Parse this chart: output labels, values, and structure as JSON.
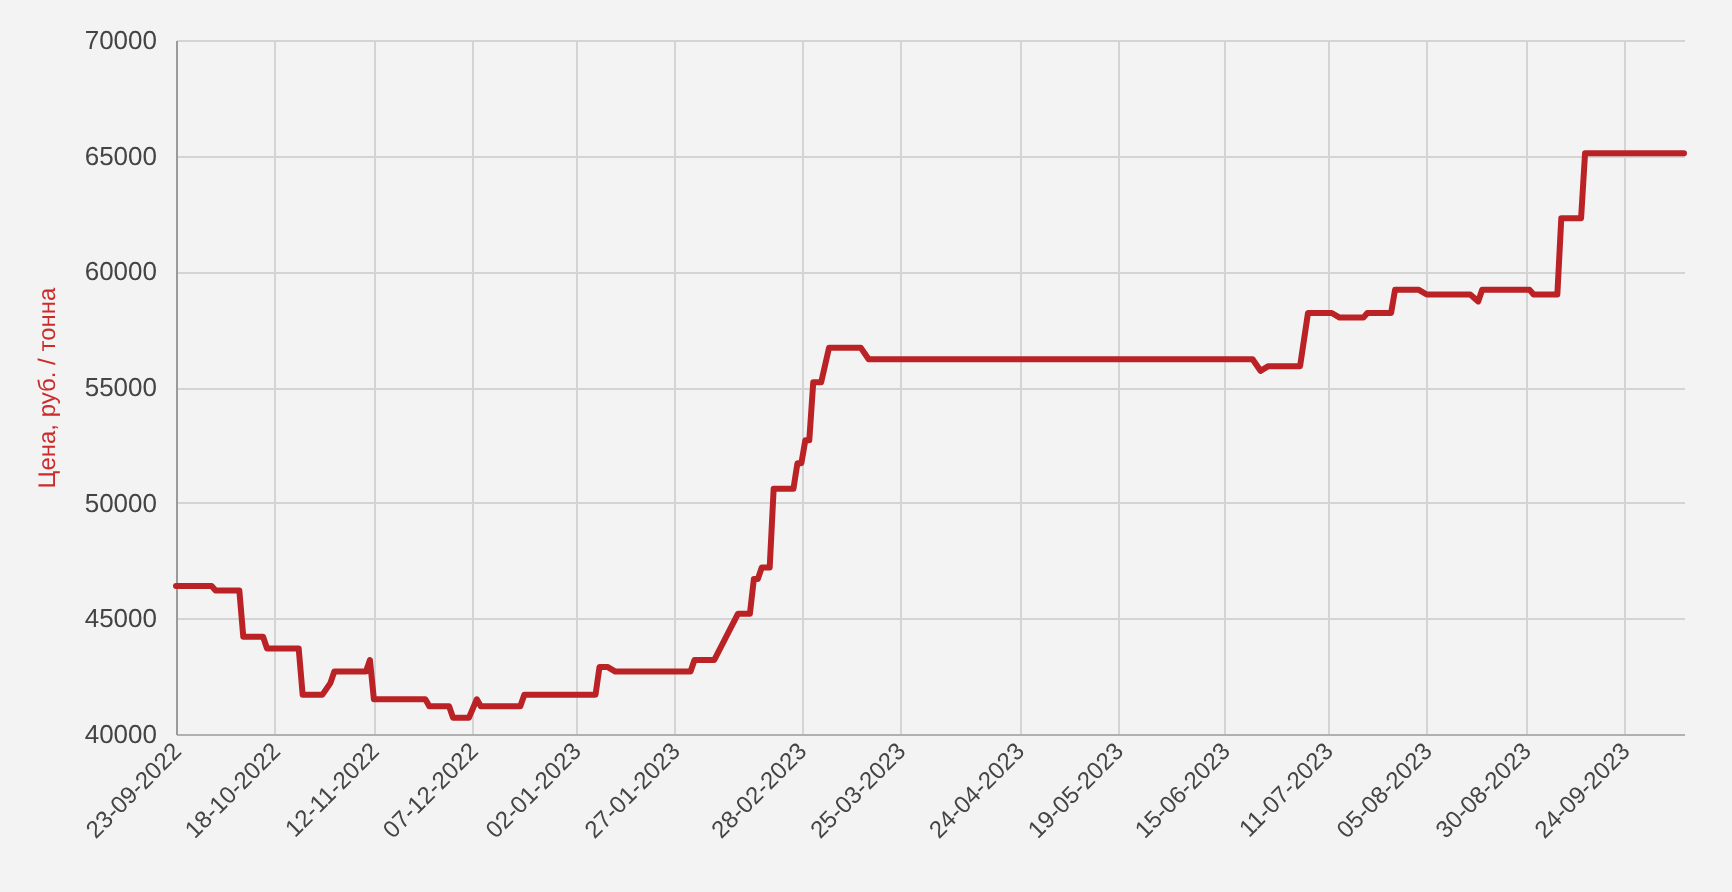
{
  "chart_data": {
    "type": "line",
    "ylabel": "Цена, руб. / тонна",
    "x": [
      "2022-09-23",
      "2022-10-02",
      "2022-10-03",
      "2022-10-09",
      "2022-10-10",
      "2022-10-15",
      "2022-10-16",
      "2022-10-24",
      "2022-10-25",
      "2022-10-30",
      "2022-11-01",
      "2022-11-02",
      "2022-11-10",
      "2022-11-11",
      "2022-11-12",
      "2022-11-25",
      "2022-11-26",
      "2022-12-01",
      "2022-12-02",
      "2022-12-06",
      "2022-12-08",
      "2022-12-09",
      "2022-12-19",
      "2022-12-20",
      "2023-01-07",
      "2023-01-08",
      "2023-01-10",
      "2023-01-12",
      "2023-01-31",
      "2023-02-01",
      "2023-02-06",
      "2023-02-12",
      "2023-02-15",
      "2023-02-16",
      "2023-02-17",
      "2023-02-18",
      "2023-02-20",
      "2023-02-21",
      "2023-02-26",
      "2023-02-27",
      "2023-02-28",
      "2023-03-01",
      "2023-03-02",
      "2023-03-03",
      "2023-03-05",
      "2023-03-07",
      "2023-03-15",
      "2023-03-17",
      "2023-06-22",
      "2023-06-24",
      "2023-06-26",
      "2023-07-04",
      "2023-07-06",
      "2023-07-12",
      "2023-07-14",
      "2023-07-20",
      "2023-07-21",
      "2023-07-27",
      "2023-07-28",
      "2023-08-03",
      "2023-08-05",
      "2023-08-16",
      "2023-08-18",
      "2023-08-19",
      "2023-08-31",
      "2023-09-01",
      "2023-09-07",
      "2023-09-08",
      "2023-09-13",
      "2023-09-14",
      "2023-10-09"
    ],
    "series": [
      {
        "color": "#bb2226",
        "values": [
          46400,
          46400,
          46200,
          46200,
          44200,
          44200,
          43700,
          43700,
          41700,
          41700,
          42200,
          42700,
          42700,
          43200,
          41500,
          41500,
          41200,
          41200,
          40700,
          40700,
          41500,
          41200,
          41200,
          41700,
          41700,
          42900,
          42900,
          42700,
          42700,
          43200,
          43200,
          45200,
          45200,
          46700,
          46700,
          47200,
          47200,
          50600,
          50600,
          51700,
          51700,
          52700,
          52700,
          55200,
          55200,
          56700,
          56700,
          56200,
          56200,
          55700,
          55900,
          55900,
          58200,
          58200,
          58000,
          58000,
          58200,
          58200,
          59200,
          59200,
          59000,
          59000,
          58700,
          59200,
          59200,
          59000,
          59000,
          62300,
          62300,
          65100,
          65100
        ]
      }
    ],
    "xlim": [
      "2022-09-23",
      "2023-10-09"
    ],
    "xticks": [
      {
        "value": "2022-09-23",
        "label": "23-09-2022"
      },
      {
        "value": "2022-10-18",
        "label": "18-10-2022"
      },
      {
        "value": "2022-11-12",
        "label": "12-11-2022"
      },
      {
        "value": "2022-12-07",
        "label": "07-12-2022"
      },
      {
        "value": "2023-01-02",
        "label": "02-01-2023"
      },
      {
        "value": "2023-01-27",
        "label": "27-01-2023"
      },
      {
        "value": "2023-02-28",
        "label": "28-02-2023"
      },
      {
        "value": "2023-03-25",
        "label": "25-03-2023"
      },
      {
        "value": "2023-04-24",
        "label": "24-04-2023"
      },
      {
        "value": "2023-05-19",
        "label": "19-05-2023"
      },
      {
        "value": "2023-06-15",
        "label": "15-06-2023"
      },
      {
        "value": "2023-07-11",
        "label": "11-07-2023"
      },
      {
        "value": "2023-08-05",
        "label": "05-08-2023"
      },
      {
        "value": "2023-08-30",
        "label": "30-08-2023"
      },
      {
        "value": "2023-09-24",
        "label": "24-09-2023"
      }
    ],
    "ylim": [
      40000,
      70000
    ],
    "yticks": [
      40000,
      45000,
      50000,
      55000,
      60000,
      65000,
      70000
    ],
    "grid": true,
    "line_style": "solid"
  }
}
